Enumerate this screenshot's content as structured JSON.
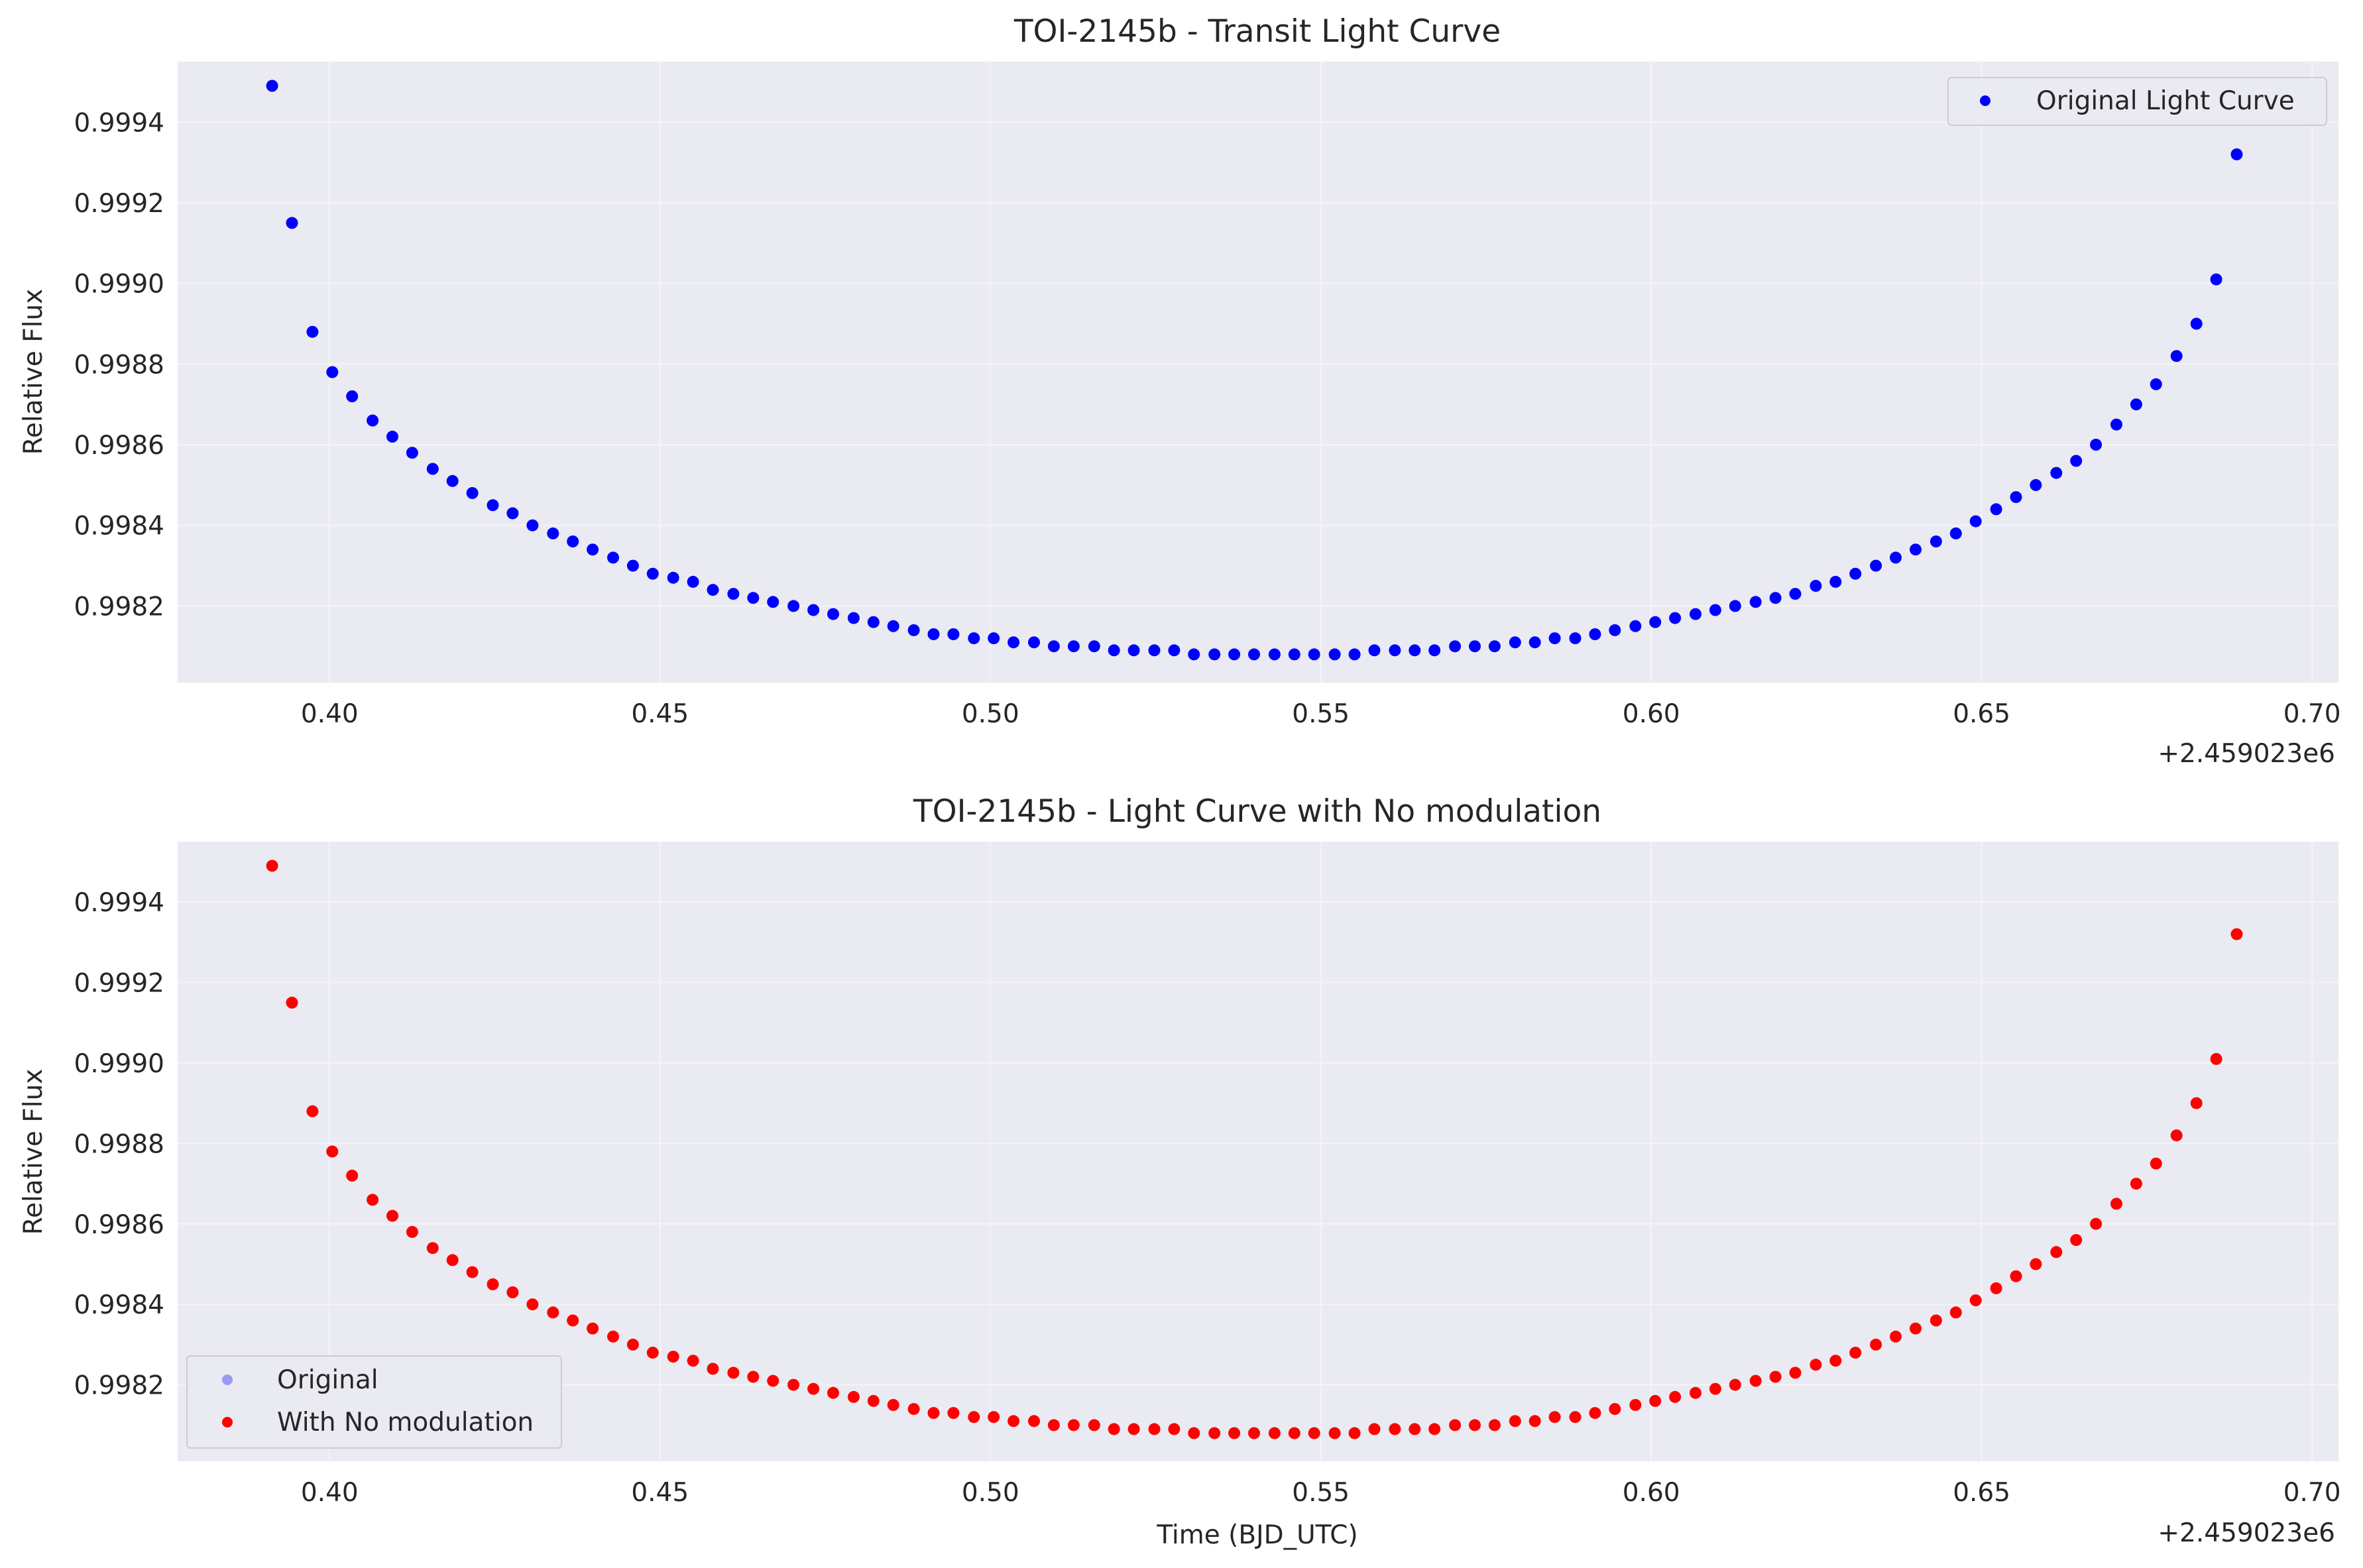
{
  "figure": {
    "background": "#ffffff",
    "axes_facecolor": "#eaeaf2",
    "grid_color": "#f4f4f8"
  },
  "chart_data": [
    {
      "type": "scatter",
      "title": "TOI-2145b - Transit Light Curve",
      "xlabel": "",
      "ylabel": "Relative Flux",
      "x_offset_label": "+2.459023e6",
      "xlim": [
        0.377,
        0.704
      ],
      "ylim": [
        0.99801,
        0.99955
      ],
      "xticks": [
        0.4,
        0.45,
        0.5,
        0.55,
        0.6,
        0.65,
        0.7
      ],
      "xtick_labels": [
        "0.40",
        "0.45",
        "0.50",
        "0.55",
        "0.60",
        "0.65",
        "0.70"
      ],
      "yticks": [
        0.9982,
        0.9984,
        0.9986,
        0.9988,
        0.999,
        0.9992,
        0.9994
      ],
      "ytick_labels": [
        "0.9982",
        "0.9984",
        "0.9986",
        "0.9988",
        "0.9990",
        "0.9992",
        "0.9994"
      ],
      "grid": true,
      "legend": {
        "position": "upper right",
        "entries": [
          "Original Light Curve"
        ]
      },
      "series": [
        {
          "name": "Original Light Curve",
          "color": "#0000ff",
          "opacity": 1.0,
          "draw": true
        }
      ]
    },
    {
      "type": "scatter",
      "title": "TOI-2145b - Light Curve with No modulation",
      "xlabel": "Time (BJD_UTC)",
      "ylabel": "Relative Flux",
      "x_offset_label": "+2.459023e6",
      "xlim": [
        0.377,
        0.704
      ],
      "ylim": [
        0.99801,
        0.99955
      ],
      "xticks": [
        0.4,
        0.45,
        0.5,
        0.55,
        0.6,
        0.65,
        0.7
      ],
      "xtick_labels": [
        "0.40",
        "0.45",
        "0.50",
        "0.55",
        "0.60",
        "0.65",
        "0.70"
      ],
      "yticks": [
        0.9982,
        0.9984,
        0.9986,
        0.9988,
        0.999,
        0.9992,
        0.9994
      ],
      "ytick_labels": [
        "0.9982",
        "0.9984",
        "0.9986",
        "0.9988",
        "0.9990",
        "0.9992",
        "0.9994"
      ],
      "grid": true,
      "legend": {
        "position": "lower left",
        "entries": [
          "Original",
          "With No modulation"
        ]
      },
      "series": [
        {
          "name": "Original",
          "color": "#4a4af0",
          "opacity": 0.5,
          "draw": false
        },
        {
          "name": "With No modulation",
          "color": "#ff0000",
          "opacity": 1.0,
          "draw": true
        }
      ]
    }
  ],
  "shared_series": {
    "x": [
      0.3913,
      0.3943,
      0.3974,
      0.4004,
      0.4034,
      0.4065,
      0.4095,
      0.4125,
      0.4156,
      0.4186,
      0.4216,
      0.4247,
      0.4277,
      0.4307,
      0.4338,
      0.4368,
      0.4398,
      0.4429,
      0.4459,
      0.4489,
      0.452,
      0.455,
      0.458,
      0.4611,
      0.4641,
      0.4671,
      0.4702,
      0.4732,
      0.4762,
      0.4793,
      0.4823,
      0.4853,
      0.4884,
      0.4914,
      0.4944,
      0.4975,
      0.5005,
      0.5035,
      0.5066,
      0.5096,
      0.5126,
      0.5157,
      0.5187,
      0.5217,
      0.5248,
      0.5278,
      0.5308,
      0.5339,
      0.5369,
      0.5399,
      0.543,
      0.546,
      0.549,
      0.5521,
      0.5551,
      0.5581,
      0.5612,
      0.5642,
      0.5672,
      0.5703,
      0.5733,
      0.5763,
      0.5794,
      0.5824,
      0.5854,
      0.5885,
      0.5915,
      0.5945,
      0.5976,
      0.6006,
      0.6036,
      0.6067,
      0.6097,
      0.6127,
      0.6158,
      0.6188,
      0.6218,
      0.6249,
      0.6279,
      0.6309,
      0.634,
      0.637,
      0.64,
      0.6431,
      0.6461,
      0.6491,
      0.6522,
      0.6552,
      0.6582,
      0.6613,
      0.6643,
      0.6673,
      0.6704,
      0.6734,
      0.6764,
      0.6795,
      0.6825,
      0.6855,
      0.6886
    ],
    "y": [
      0.99949,
      0.99915,
      0.99888,
      0.99878,
      0.99872,
      0.99866,
      0.99862,
      0.99858,
      0.99854,
      0.99851,
      0.99848,
      0.99845,
      0.99843,
      0.9984,
      0.99838,
      0.99836,
      0.99834,
      0.99832,
      0.9983,
      0.99828,
      0.99827,
      0.99826,
      0.99824,
      0.99823,
      0.99822,
      0.99821,
      0.9982,
      0.99819,
      0.99818,
      0.99817,
      0.99816,
      0.99815,
      0.99814,
      0.99813,
      0.99813,
      0.99812,
      0.99812,
      0.99811,
      0.99811,
      0.9981,
      0.9981,
      0.9981,
      0.99809,
      0.99809,
      0.99809,
      0.99809,
      0.99808,
      0.99808,
      0.99808,
      0.99808,
      0.99808,
      0.99808,
      0.99808,
      0.99808,
      0.99808,
      0.99809,
      0.99809,
      0.99809,
      0.99809,
      0.9981,
      0.9981,
      0.9981,
      0.99811,
      0.99811,
      0.99812,
      0.99812,
      0.99813,
      0.99814,
      0.99815,
      0.99816,
      0.99817,
      0.99818,
      0.99819,
      0.9982,
      0.99821,
      0.99822,
      0.99823,
      0.99825,
      0.99826,
      0.99828,
      0.9983,
      0.99832,
      0.99834,
      0.99836,
      0.99838,
      0.99841,
      0.99844,
      0.99847,
      0.9985,
      0.99853,
      0.99856,
      0.9986,
      0.99865,
      0.9987,
      0.99875,
      0.99882,
      0.9989,
      0.99901,
      0.99932
    ]
  }
}
